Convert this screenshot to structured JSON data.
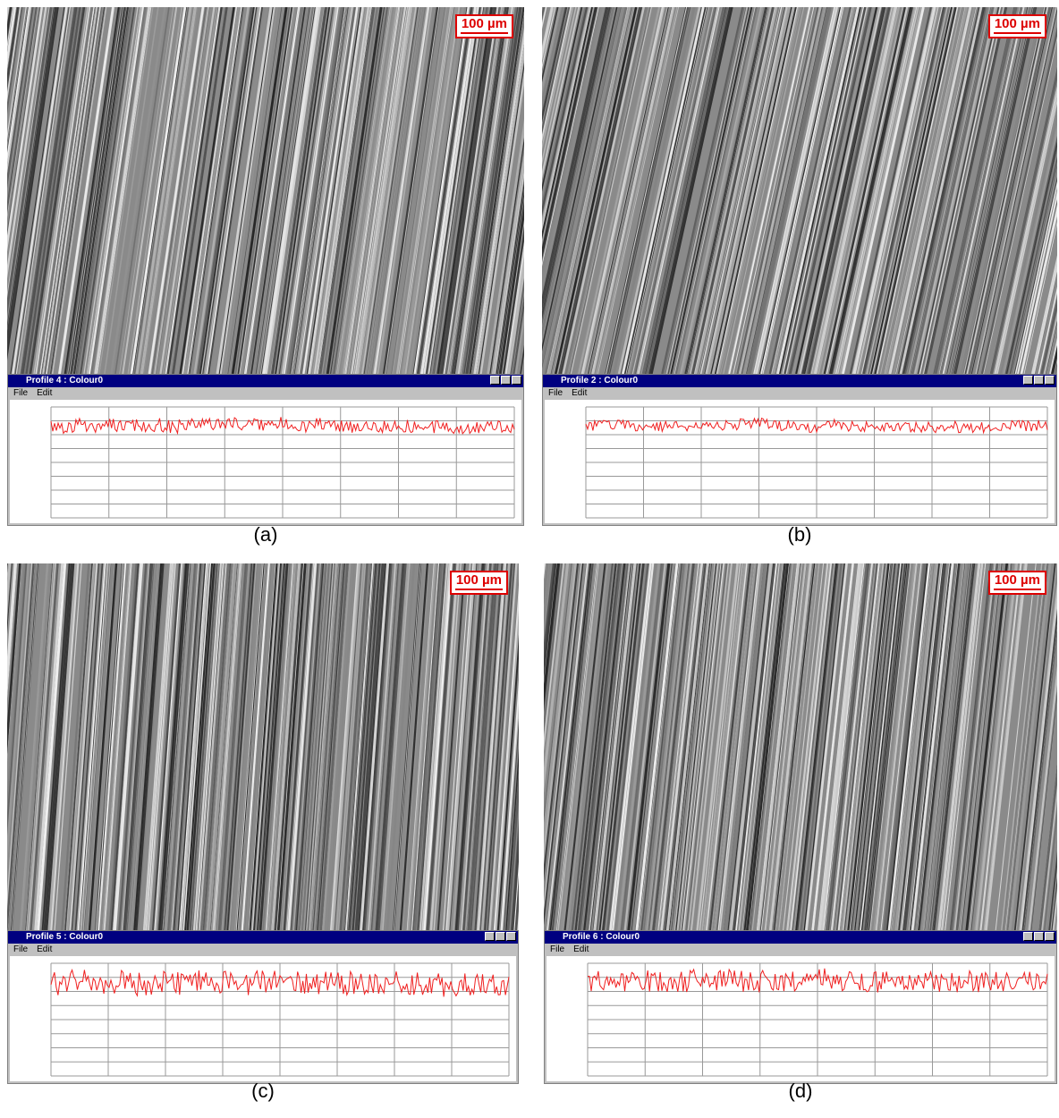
{
  "panels": [
    {
      "scale_bar": "100 µm",
      "window": {
        "title": "Profile 4 : Colour0",
        "menu": [
          "File",
          "Edit"
        ]
      },
      "label": "(a)"
    },
    {
      "scale_bar": "100 µm",
      "window": {
        "title": "Profile 2 : Colour0",
        "menu": [
          "File",
          "Edit"
        ]
      },
      "label": "(b)"
    },
    {
      "scale_bar": "100 µm",
      "window": {
        "title": "Profile 5 : Colour0",
        "menu": [
          "File",
          "Edit"
        ]
      },
      "label": "(c)"
    },
    {
      "scale_bar": "100 µm",
      "window": {
        "title": "Profile 6 : Colour0",
        "menu": [
          "File",
          "Edit"
        ]
      },
      "label": "(d)"
    }
  ]
}
